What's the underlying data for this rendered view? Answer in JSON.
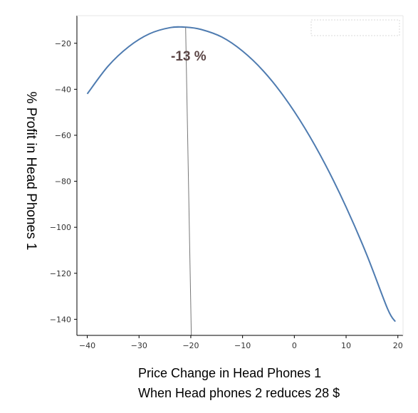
{
  "chart_data": {
    "type": "line",
    "title": "",
    "ylabel": "% Profit in Head Phones 1",
    "xlabel_lines": [
      "Price Change  in Head Phones 1",
      "When Head phones 2 reduces 28 $"
    ],
    "xlim": [
      -42,
      21
    ],
    "ylim": [
      -147,
      -8
    ],
    "xticks": [
      -40,
      -30,
      -20,
      -10,
      0,
      10,
      20
    ],
    "yticks": [
      -20,
      -40,
      -60,
      -80,
      -100,
      -120,
      -140
    ],
    "grid": false,
    "legend": "none",
    "line_color": "#4e7bb0",
    "series": [
      {
        "x": [
          -40,
          -36,
          -32,
          -28,
          -24,
          -21,
          -18,
          -14,
          -10,
          -6,
          -2,
          2,
          6,
          10,
          14,
          18,
          19.5
        ],
        "y": [
          -42,
          -30,
          -21.5,
          -15.9,
          -13.2,
          -13,
          -14,
          -17.3,
          -23.4,
          -32,
          -43.2,
          -56.8,
          -72.8,
          -91.2,
          -112,
          -135.4,
          -141
        ]
      }
    ],
    "annotation": {
      "text": "-13 %",
      "peak_x": -21,
      "peak_y": -13
    }
  }
}
